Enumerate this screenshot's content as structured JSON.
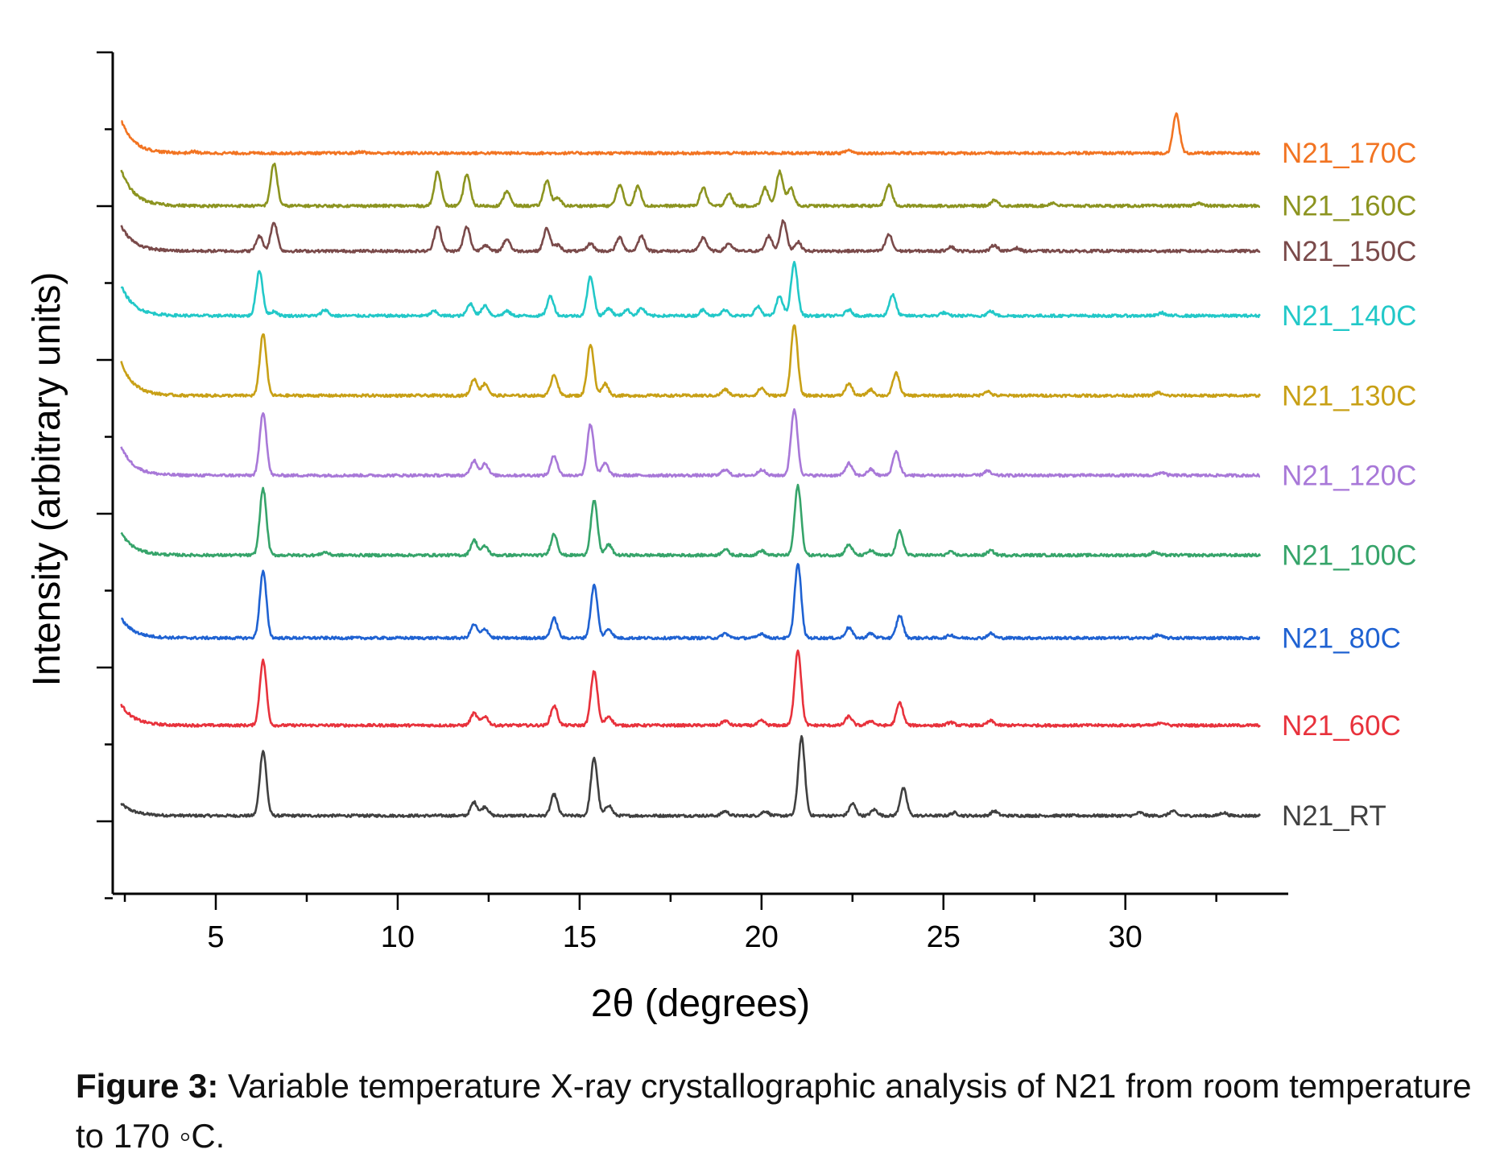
{
  "chart_data": {
    "type": "line",
    "xlabel": "2θ (degrees)",
    "ylabel": "Intensity (arbitrary units)",
    "xlim": [
      2.3,
      34.3
    ],
    "xticks": [
      5,
      10,
      15,
      20,
      25,
      30
    ],
    "yticks_labeled": false,
    "grid": false,
    "legend": "series labels at right end of each trace",
    "peak_width_deg": 0.09,
    "series": [
      {
        "name": "N21_RT",
        "color": "#404040",
        "baseline": 0,
        "onset": 0.8,
        "peaks": [
          [
            6.3,
            4.3
          ],
          [
            12.1,
            0.9
          ],
          [
            12.4,
            0.6
          ],
          [
            14.3,
            1.4
          ],
          [
            15.4,
            3.8
          ],
          [
            15.8,
            0.7
          ],
          [
            19.0,
            0.3
          ],
          [
            20.1,
            0.3
          ],
          [
            21.1,
            5.2
          ],
          [
            22.5,
            0.8
          ],
          [
            23.1,
            0.4
          ],
          [
            23.9,
            1.8
          ],
          [
            25.3,
            0.2
          ],
          [
            26.4,
            0.3
          ],
          [
            30.4,
            0.2
          ],
          [
            31.3,
            0.3
          ],
          [
            32.7,
            0.2
          ]
        ]
      },
      {
        "name": "N21_60C",
        "color": "#e8323c",
        "baseline": 6.0,
        "onset": 1.4,
        "peaks": [
          [
            6.3,
            4.3
          ],
          [
            12.1,
            0.8
          ],
          [
            12.4,
            0.6
          ],
          [
            14.3,
            1.3
          ],
          [
            15.4,
            3.6
          ],
          [
            15.8,
            0.6
          ],
          [
            19.0,
            0.3
          ],
          [
            20.0,
            0.3
          ],
          [
            21.0,
            5.0
          ],
          [
            22.4,
            0.6
          ],
          [
            23.0,
            0.3
          ],
          [
            23.8,
            1.5
          ],
          [
            25.2,
            0.2
          ],
          [
            26.3,
            0.3
          ],
          [
            31.0,
            0.2
          ]
        ]
      },
      {
        "name": "N21_80C",
        "color": "#1f62d2",
        "baseline": 11.8,
        "onset": 1.3,
        "peaks": [
          [
            6.3,
            4.4
          ],
          [
            12.1,
            0.9
          ],
          [
            12.4,
            0.6
          ],
          [
            14.3,
            1.3
          ],
          [
            15.4,
            3.5
          ],
          [
            15.8,
            0.6
          ],
          [
            19.0,
            0.3
          ],
          [
            20.0,
            0.3
          ],
          [
            21.0,
            4.9
          ],
          [
            22.4,
            0.7
          ],
          [
            23.0,
            0.3
          ],
          [
            23.8,
            1.5
          ],
          [
            25.2,
            0.2
          ],
          [
            26.3,
            0.3
          ],
          [
            30.9,
            0.2
          ]
        ]
      },
      {
        "name": "N21_100C",
        "color": "#36a46a",
        "baseline": 17.3,
        "onset": 1.5,
        "peaks": [
          [
            6.3,
            4.4
          ],
          [
            8.0,
            0.2
          ],
          [
            12.1,
            1.0
          ],
          [
            12.4,
            0.6
          ],
          [
            14.3,
            1.4
          ],
          [
            15.4,
            3.6
          ],
          [
            15.8,
            0.7
          ],
          [
            19.0,
            0.4
          ],
          [
            20.0,
            0.3
          ],
          [
            21.0,
            4.6
          ],
          [
            22.4,
            0.7
          ],
          [
            23.0,
            0.3
          ],
          [
            23.8,
            1.6
          ],
          [
            25.2,
            0.2
          ],
          [
            26.3,
            0.3
          ],
          [
            30.8,
            0.2
          ]
        ]
      },
      {
        "name": "N21_120C",
        "color": "#a878d8",
        "baseline": 22.6,
        "onset": 1.9,
        "peaks": [
          [
            6.3,
            4.2
          ],
          [
            12.1,
            1.0
          ],
          [
            12.4,
            0.8
          ],
          [
            14.3,
            1.3
          ],
          [
            15.3,
            3.4
          ],
          [
            15.7,
            0.8
          ],
          [
            19.0,
            0.4
          ],
          [
            20.0,
            0.4
          ],
          [
            20.9,
            4.4
          ],
          [
            22.4,
            0.8
          ],
          [
            23.0,
            0.4
          ],
          [
            23.7,
            1.6
          ],
          [
            26.2,
            0.3
          ],
          [
            31.0,
            0.2
          ]
        ]
      },
      {
        "name": "N21_130C",
        "color": "#c8a016",
        "baseline": 27.9,
        "onset": 2.2,
        "peaks": [
          [
            6.3,
            4.1
          ],
          [
            12.1,
            1.1
          ],
          [
            12.4,
            0.8
          ],
          [
            14.3,
            1.4
          ],
          [
            15.3,
            3.4
          ],
          [
            15.7,
            0.8
          ],
          [
            19.0,
            0.4
          ],
          [
            20.0,
            0.5
          ],
          [
            20.9,
            4.7
          ],
          [
            22.4,
            0.8
          ],
          [
            23.0,
            0.4
          ],
          [
            23.7,
            1.5
          ],
          [
            26.2,
            0.3
          ],
          [
            30.9,
            0.2
          ]
        ]
      },
      {
        "name": "N21_140C",
        "color": "#22c8c8",
        "baseline": 33.2,
        "onset": 2.0,
        "peaks": [
          [
            6.2,
            3.0
          ],
          [
            6.6,
            0.3
          ],
          [
            8.0,
            0.4
          ],
          [
            11.0,
            0.3
          ],
          [
            12.0,
            0.8
          ],
          [
            12.4,
            0.7
          ],
          [
            13.0,
            0.3
          ],
          [
            14.2,
            1.3
          ],
          [
            15.3,
            2.6
          ],
          [
            15.8,
            0.5
          ],
          [
            16.3,
            0.4
          ],
          [
            16.7,
            0.5
          ],
          [
            18.4,
            0.4
          ],
          [
            19.0,
            0.4
          ],
          [
            19.9,
            0.6
          ],
          [
            20.5,
            1.3
          ],
          [
            20.9,
            3.5
          ],
          [
            22.4,
            0.4
          ],
          [
            23.6,
            1.4
          ],
          [
            25.0,
            0.2
          ],
          [
            26.3,
            0.3
          ],
          [
            31.0,
            0.2
          ]
        ]
      },
      {
        "name": "N21_150C",
        "color": "#7a4a4a",
        "baseline": 37.5,
        "onset": 1.7,
        "peaks": [
          [
            6.2,
            1.0
          ],
          [
            6.6,
            1.9
          ],
          [
            11.1,
            1.7
          ],
          [
            11.9,
            1.6
          ],
          [
            12.4,
            0.4
          ],
          [
            13.0,
            0.8
          ],
          [
            14.1,
            1.5
          ],
          [
            14.4,
            0.4
          ],
          [
            15.3,
            0.5
          ],
          [
            16.1,
            0.9
          ],
          [
            16.7,
            1.0
          ],
          [
            18.4,
            0.9
          ],
          [
            19.1,
            0.5
          ],
          [
            20.2,
            1.0
          ],
          [
            20.6,
            2.0
          ],
          [
            21.0,
            0.6
          ],
          [
            23.5,
            1.1
          ],
          [
            25.2,
            0.3
          ],
          [
            26.4,
            0.4
          ],
          [
            27.0,
            0.2
          ]
        ]
      },
      {
        "name": "N21_160C",
        "color": "#8c9420",
        "baseline": 40.5,
        "onset": 2.4,
        "peaks": [
          [
            6.6,
            2.8
          ],
          [
            11.1,
            2.3
          ],
          [
            11.9,
            2.1
          ],
          [
            13.0,
            1.0
          ],
          [
            14.1,
            1.7
          ],
          [
            14.4,
            0.5
          ],
          [
            16.1,
            1.4
          ],
          [
            16.6,
            1.3
          ],
          [
            18.4,
            1.2
          ],
          [
            19.1,
            0.8
          ],
          [
            20.1,
            1.2
          ],
          [
            20.5,
            2.3
          ],
          [
            20.8,
            1.2
          ],
          [
            23.5,
            1.4
          ],
          [
            26.4,
            0.4
          ],
          [
            28.0,
            0.2
          ],
          [
            32.0,
            0.2
          ]
        ]
      },
      {
        "name": "N21_170C",
        "color": "#f27422",
        "baseline": 44.0,
        "onset": 2.2,
        "peaks": [
          [
            4.4,
            0.1
          ],
          [
            9.0,
            0.1
          ],
          [
            22.4,
            0.2
          ],
          [
            31.4,
            2.6
          ]
        ]
      }
    ]
  },
  "caption": {
    "label": "Figure 3:",
    "text": " Variable temperature X-ray crystallographic analysis of N21 from room temperature to 170 ◦C."
  }
}
